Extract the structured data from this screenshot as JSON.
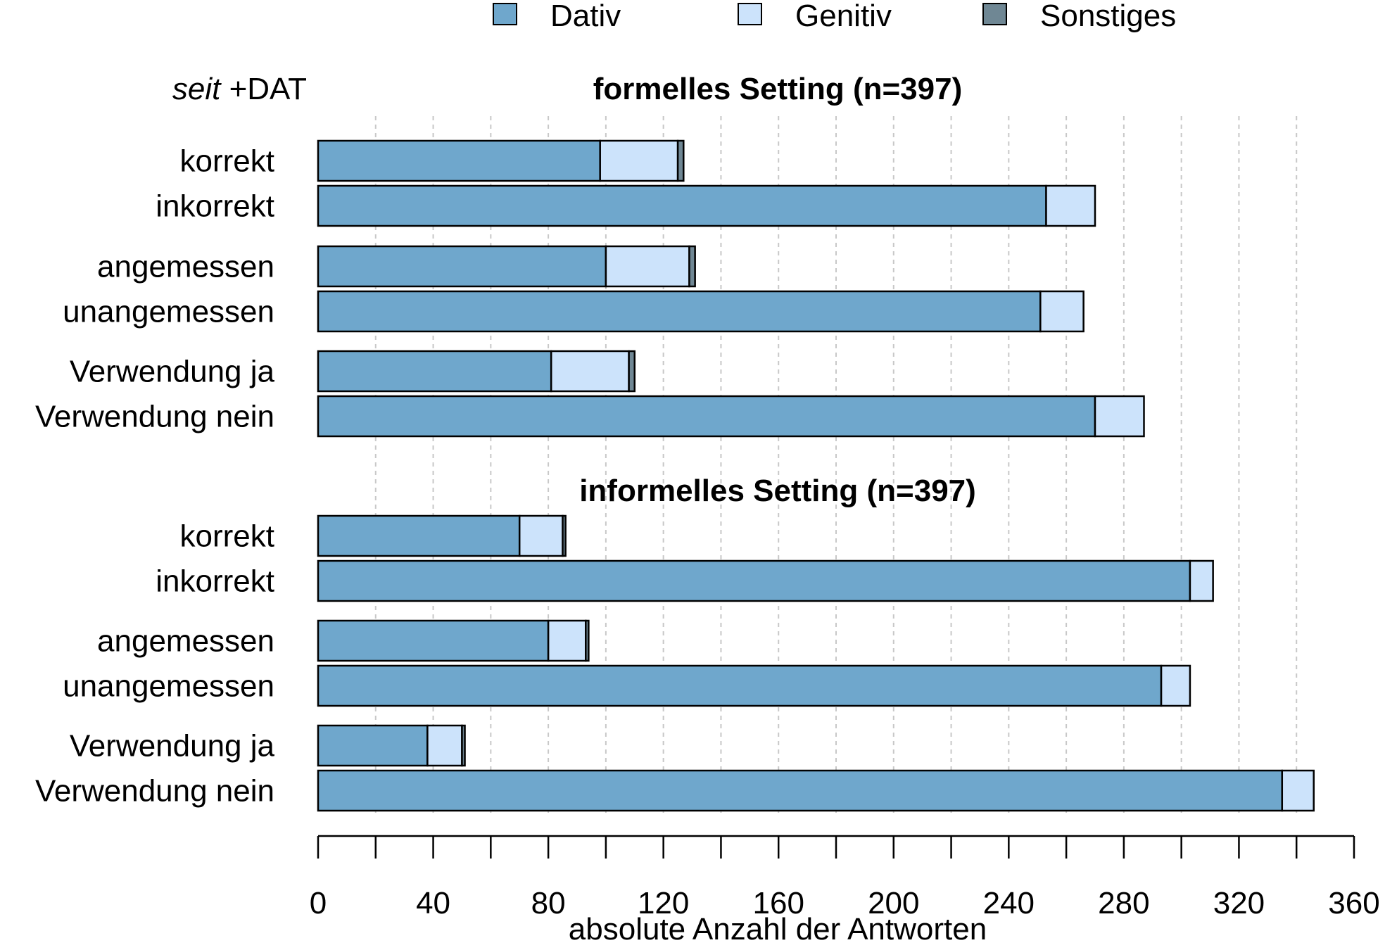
{
  "chart_data": {
    "type": "bar",
    "orientation": "horizontal",
    "stacked": true,
    "corner_label": {
      "italic": "seit",
      "rest": " +DAT"
    },
    "legend": [
      {
        "name": "Dativ",
        "color": "#6fa7cc"
      },
      {
        "name": "Genitiv",
        "color": "#cce3fb"
      },
      {
        "name": "Sonstiges",
        "color": "#6f8794"
      }
    ],
    "xlabel": "absolute Anzahl der Antworten",
    "xlim": [
      0,
      360
    ],
    "xticks": [
      0,
      40,
      80,
      120,
      160,
      200,
      240,
      280,
      320,
      360
    ],
    "grid_vertical": [
      20,
      60,
      100,
      140,
      180,
      220,
      260,
      300,
      340
    ],
    "panels": [
      {
        "title": "formelles Setting (n=397)",
        "categories": [
          "korrekt",
          "inkorrekt",
          "angemessen",
          "unangemessen",
          "Verwendung ja",
          "Verwendung nein"
        ],
        "series": [
          {
            "name": "Dativ",
            "values": [
              98,
              253,
              100,
              251,
              81,
              270
            ]
          },
          {
            "name": "Genitiv",
            "values": [
              27,
              17,
              29,
              15,
              27,
              17
            ]
          },
          {
            "name": "Sonstiges",
            "values": [
              2,
              0,
              2,
              0,
              2,
              0
            ]
          }
        ]
      },
      {
        "title": "informelles Setting (n=397)",
        "categories": [
          "korrekt",
          "inkorrekt",
          "angemessen",
          "unangemessen",
          "Verwendung ja",
          "Verwendung nein"
        ],
        "series": [
          {
            "name": "Dativ",
            "values": [
              70,
              303,
              80,
              293,
              38,
              335
            ]
          },
          {
            "name": "Genitiv",
            "values": [
              15,
              8,
              13,
              10,
              12,
              11
            ]
          },
          {
            "name": "Sonstiges",
            "values": [
              1,
              0,
              1,
              0,
              1,
              0
            ]
          }
        ]
      }
    ]
  }
}
